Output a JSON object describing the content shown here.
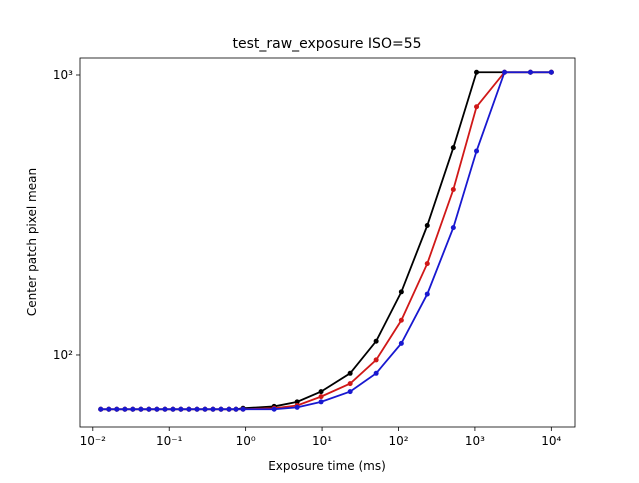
{
  "chart_data": {
    "type": "line",
    "title": "test_raw_exposure ISO=55",
    "xlabel": "Exposure time (ms)",
    "ylabel": "Center patch pixel mean",
    "xscale": "log",
    "yscale": "log",
    "x": [
      0.0127,
      0.0162,
      0.0206,
      0.0263,
      0.0334,
      0.0426,
      0.0542,
      0.069,
      0.088,
      0.112,
      0.142,
      0.181,
      0.231,
      0.294,
      0.374,
      0.476,
      0.606,
      0.748,
      0.925,
      2.36,
      4.72,
      9.7,
      23.3,
      51,
      109,
      238,
      522,
      1050,
      2440,
      5330,
      10000
    ],
    "series": [
      {
        "color": "#000000",
        "values": [
          64,
          64,
          64,
          64,
          64,
          64,
          64,
          64,
          64,
          64,
          64,
          64,
          64,
          64,
          64,
          64,
          64,
          64,
          64.5,
          65.5,
          68,
          74,
          86,
          112,
          168,
          290,
          550,
          1023,
          1023,
          1023,
          1023
        ]
      },
      {
        "color": "#d01818",
        "values": [
          64,
          64,
          64,
          64,
          64,
          64,
          64,
          64,
          64,
          64,
          64,
          64,
          64,
          64,
          64,
          64,
          64,
          64,
          64,
          64.5,
          66,
          71,
          79,
          96,
          133,
          212,
          390,
          770,
          1023,
          1023,
          1023
        ]
      },
      {
        "color": "#1818d0",
        "values": [
          64,
          64,
          64,
          64,
          64,
          64,
          64,
          64,
          64,
          64,
          64,
          64,
          64,
          64,
          64,
          64,
          64,
          64,
          64,
          64,
          65,
          68,
          74,
          86,
          110,
          165,
          285,
          535,
          1023,
          1023,
          1023
        ]
      }
    ],
    "xlim": [
      0.0068,
      20400
    ],
    "ylim": [
      55.3,
      1150
    ],
    "xticks": [
      {
        "value": 0.01,
        "label": "10⁻²"
      },
      {
        "value": 0.1,
        "label": "10⁻¹"
      },
      {
        "value": 1,
        "label": "10⁰"
      },
      {
        "value": 10,
        "label": "10¹"
      },
      {
        "value": 100,
        "label": "10²"
      },
      {
        "value": 1000,
        "label": "10³"
      },
      {
        "value": 10000,
        "label": "10⁴"
      }
    ],
    "yticks": [
      {
        "value": 100,
        "label": "10²"
      },
      {
        "value": 1000,
        "label": "10³"
      }
    ]
  }
}
